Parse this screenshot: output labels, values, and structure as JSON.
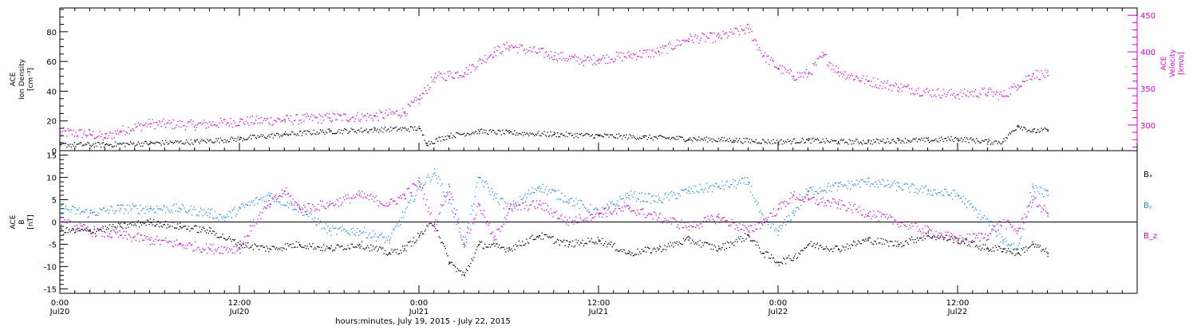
{
  "colors": {
    "black": "#000000",
    "magenta": "#d400d4",
    "blue": "#1a8ae6"
  },
  "xaxis": {
    "title": "hours:minutes, July 19, 2015 - July 22, 2015",
    "ticks": [
      {
        "h": 0,
        "top": "0:00",
        "bottom": "Jul20"
      },
      {
        "h": 12,
        "top": "12:00",
        "bottom": "Jul20"
      },
      {
        "h": 24,
        "top": "0:00",
        "bottom": "Jul21"
      },
      {
        "h": 36,
        "top": "12:00",
        "bottom": "Jul21"
      },
      {
        "h": 48,
        "top": "0:00",
        "bottom": "Jul22"
      },
      {
        "h": 60,
        "top": "12:00",
        "bottom": "Jul22"
      }
    ],
    "range_hours": [
      0,
      72
    ]
  },
  "chart_data": [
    {
      "type": "scatter",
      "title": "",
      "ylabel_left": [
        "ACE",
        "Ion Density",
        "[cm⁻³]"
      ],
      "ylabel_right": [
        "ACE",
        "Velocity",
        "[km/s]"
      ],
      "ylim_left": [
        0,
        96
      ],
      "ylim_right": [
        265,
        460
      ],
      "yticks_left": [
        0,
        20,
        40,
        60,
        80
      ],
      "yticks_right": [
        300,
        350,
        400,
        450
      ],
      "series": [
        {
          "name": "Ion Density",
          "axis": "left",
          "color": "black",
          "x": [
            0,
            3,
            6,
            9,
            12,
            15,
            18,
            21,
            24,
            24.5,
            26,
            28,
            30,
            33,
            36,
            39,
            42,
            45,
            48,
            50,
            52,
            54,
            56,
            58,
            60,
            62,
            63,
            64,
            65,
            66
          ],
          "y": [
            4,
            4,
            5,
            6,
            8,
            11,
            13,
            14,
            15,
            5,
            10,
            13,
            12,
            11,
            10,
            9,
            8,
            7,
            6,
            7,
            6,
            6,
            7,
            7,
            8,
            6,
            6,
            17,
            13,
            14
          ]
        },
        {
          "name": "Velocity",
          "axis": "right",
          "color": "magenta",
          "x": [
            0,
            2,
            3,
            4,
            6,
            9,
            12,
            15,
            18,
            21,
            23,
            24,
            25,
            27,
            29,
            30,
            33,
            35,
            36,
            38,
            40,
            42,
            44,
            46,
            47,
            48,
            49,
            50,
            51,
            52,
            54,
            56,
            58,
            60,
            62,
            63,
            64,
            65,
            66
          ],
          "y": [
            290,
            288,
            283,
            292,
            302,
            300,
            305,
            307,
            310,
            312,
            318,
            335,
            365,
            372,
            400,
            408,
            395,
            388,
            390,
            395,
            400,
            418,
            420,
            432,
            395,
            378,
            367,
            370,
            395,
            373,
            360,
            352,
            345,
            342,
            345,
            340,
            355,
            370,
            368
          ]
        }
      ]
    },
    {
      "type": "scatter",
      "title": "",
      "ylabel": [
        "ACE",
        "B",
        "[nT]"
      ],
      "ylim": [
        -16,
        16
      ],
      "yticks": [
        -15,
        -10,
        -5,
        0,
        5,
        10,
        15
      ],
      "zero_line": true,
      "legend": [
        "Bₓ",
        "Bᵧ",
        "B_z"
      ],
      "series": [
        {
          "name": "Bₓ",
          "color": "black",
          "x": [
            0,
            2,
            4,
            6,
            8,
            10,
            12,
            14,
            16,
            18,
            20,
            22,
            23,
            24,
            25,
            26,
            27,
            28,
            30,
            32,
            34,
            36,
            38,
            40,
            42,
            44,
            46,
            47,
            48,
            49,
            50,
            52,
            54,
            56,
            58,
            60,
            62,
            63,
            64,
            65,
            66
          ],
          "y": [
            -2,
            -2,
            -1,
            0,
            -1,
            -2,
            -5,
            -6,
            -5,
            -6,
            -5,
            -7,
            -6,
            -3,
            0,
            -9,
            -12,
            -5,
            -6,
            -3,
            -5,
            -4,
            -7,
            -6,
            -4,
            -6,
            -3,
            -7,
            -9,
            -8,
            -5,
            -6,
            -4,
            -5,
            -3,
            -4,
            -6,
            -6,
            -7,
            -5,
            -7
          ]
        },
        {
          "name": "Bᵧ",
          "color": "blue",
          "x": [
            0,
            2,
            4,
            6,
            8,
            10,
            11,
            12,
            14,
            16,
            18,
            20,
            22,
            24,
            25,
            26,
            27,
            28,
            29,
            30,
            32,
            34,
            36,
            38,
            40,
            42,
            44,
            46,
            47,
            48,
            49,
            50,
            52,
            54,
            56,
            58,
            60,
            62,
            63,
            64,
            65,
            66
          ],
          "y": [
            3,
            2,
            3,
            3,
            3,
            2,
            1,
            3,
            6,
            3,
            -2,
            -2,
            -4,
            8,
            11,
            5,
            -5,
            10,
            6,
            3,
            8,
            5,
            2,
            6,
            5,
            7,
            8,
            9,
            0,
            -2,
            2,
            7,
            8,
            9,
            8,
            7,
            6,
            0,
            -4,
            -6,
            8,
            6
          ]
        },
        {
          "name": "B_z",
          "color": "magenta",
          "x": [
            0,
            2,
            4,
            6,
            8,
            10,
            12,
            13,
            14,
            15,
            16,
            18,
            20,
            22,
            23,
            24,
            25,
            26,
            27,
            28,
            29,
            30,
            32,
            34,
            36,
            38,
            40,
            42,
            44,
            46,
            47,
            48,
            49,
            50,
            52,
            54,
            56,
            58,
            60,
            62,
            63,
            64,
            65,
            66
          ],
          "y": [
            0,
            -2,
            -3,
            -4,
            -5,
            -6,
            -6,
            0,
            4,
            7,
            3,
            4,
            6,
            4,
            6,
            9,
            -1,
            8,
            -5,
            4,
            -4,
            3,
            4,
            0,
            2,
            3,
            1,
            -1,
            1,
            -2,
            0,
            3,
            6,
            5,
            4,
            2,
            0,
            -2,
            -4,
            -3,
            0,
            -2,
            5,
            2
          ]
        }
      ]
    }
  ]
}
